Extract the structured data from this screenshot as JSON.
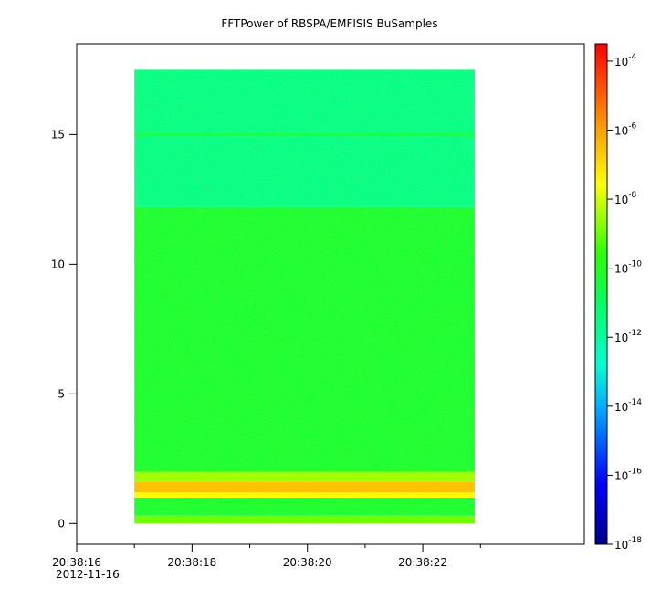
{
  "chart_data": {
    "type": "heatmap",
    "title": "FFTPower of RBSPA/EMFISIS  BuSamples",
    "xlabel": "",
    "ylabel": "",
    "x_ticks": [
      {
        "t": 16,
        "label": "20:38:16"
      },
      {
        "t": 18,
        "label": "20:38:18"
      },
      {
        "t": 20,
        "label": "20:38:20"
      },
      {
        "t": 22,
        "label": "20:38:22"
      }
    ],
    "x_minor_ticks": [
      17,
      19,
      21,
      23
    ],
    "x_date_label": "2012-11-16",
    "x_range_seconds": [
      16.0,
      24.8
    ],
    "y_ticks": [
      0,
      5,
      10,
      15
    ],
    "ylim": [
      -0.8,
      18.5
    ],
    "data_extent": {
      "x_seconds": [
        17.0,
        22.9
      ],
      "y": [
        0.0,
        17.5
      ]
    },
    "colorbar": {
      "scale": "log",
      "range": [
        "1e-18",
        "1e-3.5"
      ],
      "ticks": [
        {
          "exp": -4,
          "base": "10",
          "power": "-4"
        },
        {
          "exp": -6,
          "base": "10",
          "power": "-6"
        },
        {
          "exp": -8,
          "base": "10",
          "power": "-8"
        },
        {
          "exp": -10,
          "base": "10",
          "power": "-10"
        },
        {
          "exp": -12,
          "base": "10",
          "power": "-12"
        },
        {
          "exp": -14,
          "base": "10",
          "power": "-14"
        },
        {
          "exp": -16,
          "base": "10",
          "power": "-16"
        },
        {
          "exp": -18,
          "base": "10",
          "power": "-18"
        }
      ]
    },
    "bands": [
      {
        "y": [
          0.0,
          0.3
        ],
        "log_power": -9.0
      },
      {
        "y": [
          0.3,
          1.0
        ],
        "log_power": -10.3
      },
      {
        "y": [
          1.0,
          1.2
        ],
        "log_power": -7.5
      },
      {
        "y": [
          1.2,
          1.6
        ],
        "log_power": -6.5
      },
      {
        "y": [
          1.6,
          2.0
        ],
        "log_power": -8.5
      },
      {
        "y": [
          2.0,
          12.2
        ],
        "log_power": -10.3
      },
      {
        "y": [
          12.2,
          17.5
        ],
        "log_power": -11.6
      }
    ],
    "line_features": [
      {
        "y": 15.0,
        "log_power": -10.2
      }
    ]
  }
}
